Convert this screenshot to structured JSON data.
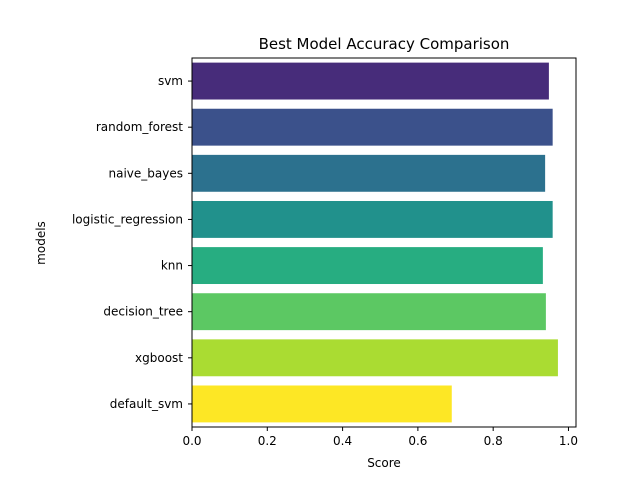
{
  "chart_data": {
    "type": "bar",
    "orientation": "horizontal",
    "title": "Best Model Accuracy Comparison",
    "xlabel": "Score",
    "ylabel": "models",
    "categories": [
      "svm",
      "random_forest",
      "naive_bayes",
      "logistic_regression",
      "knn",
      "decision_tree",
      "xgboost",
      "default_svm"
    ],
    "values": [
      0.948,
      0.958,
      0.938,
      0.958,
      0.932,
      0.94,
      0.972,
      0.69
    ],
    "colors": [
      "#472c7a",
      "#3b518b",
      "#2c718e",
      "#21918c",
      "#27ad81",
      "#5cc863",
      "#aadc32",
      "#fde725"
    ],
    "xlim": [
      0,
      1.02
    ],
    "xticks": [
      "0.0",
      "0.2",
      "0.4",
      "0.6",
      "0.8",
      "1.0"
    ],
    "grid": false
  }
}
